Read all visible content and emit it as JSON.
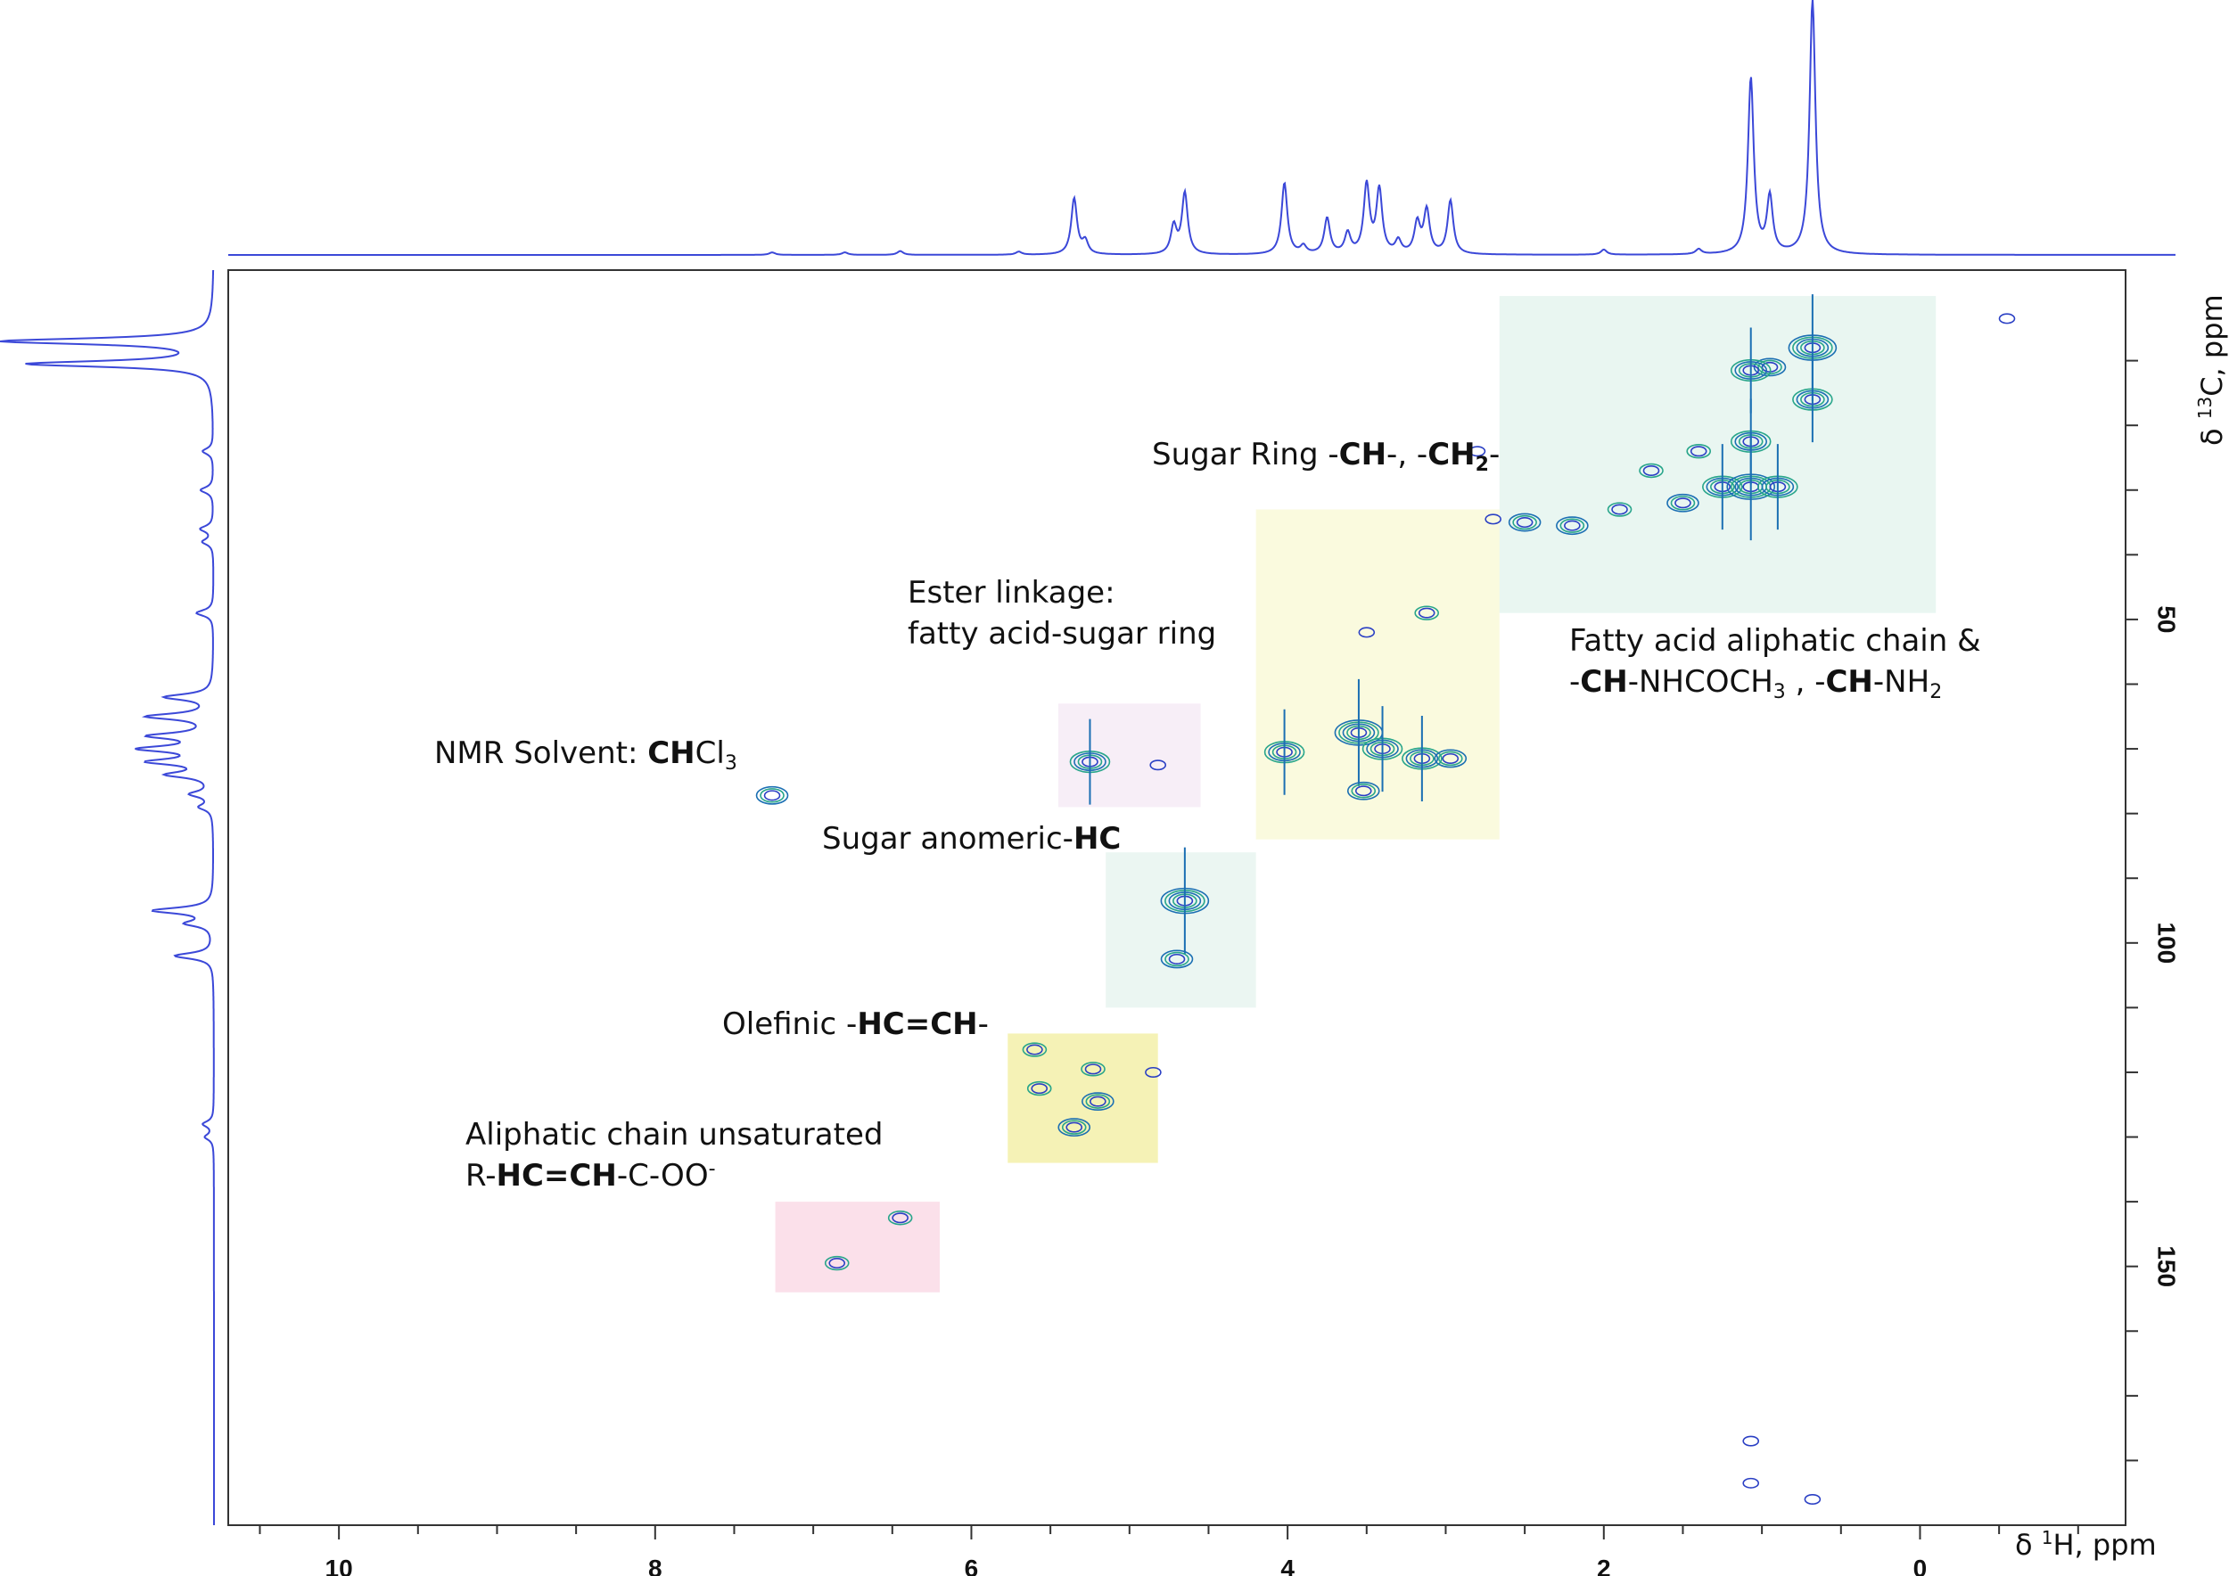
{
  "chart_data": {
    "type": "heatmap",
    "title": "",
    "x_axis": {
      "label": "δ 1H, ppm",
      "label_prefix": "δ ",
      "label_sup": "1",
      "label_suffix": "H, ppm",
      "range": [
        10.7,
        -1.3
      ],
      "direction": "reversed",
      "major_ticks": [
        10,
        8,
        6,
        4,
        2,
        0
      ],
      "tick_labels": [
        "10",
        "8",
        "6",
        "4",
        "2",
        "0"
      ]
    },
    "y_axis": {
      "label": "δ 13C, ppm",
      "label_prefix": "δ ",
      "label_sup": "13",
      "label_suffix": "C, ppm",
      "range": [
        -4,
        190
      ],
      "direction": "downward",
      "major_ticks": [
        50,
        100,
        150
      ],
      "tick_labels": [
        "50",
        "100",
        "150"
      ],
      "minor_ticks": [
        10,
        20,
        30,
        40,
        60,
        70,
        80,
        90,
        110,
        120,
        130,
        140,
        160,
        170,
        180
      ]
    },
    "projection_1H": {
      "peaks": [
        {
          "ppm": 7.26,
          "height": 0.01
        },
        {
          "ppm": 6.8,
          "height": 0.01
        },
        {
          "ppm": 6.45,
          "height": 0.015
        },
        {
          "ppm": 5.7,
          "height": 0.012
        },
        {
          "ppm": 5.35,
          "height": 0.22
        },
        {
          "ppm": 5.28,
          "height": 0.05
        },
        {
          "ppm": 4.72,
          "height": 0.11
        },
        {
          "ppm": 4.65,
          "height": 0.24
        },
        {
          "ppm": 4.02,
          "height": 0.28
        },
        {
          "ppm": 3.9,
          "height": 0.03
        },
        {
          "ppm": 3.75,
          "height": 0.14
        },
        {
          "ppm": 3.62,
          "height": 0.08
        },
        {
          "ppm": 3.5,
          "height": 0.27
        },
        {
          "ppm": 3.42,
          "height": 0.25
        },
        {
          "ppm": 3.3,
          "height": 0.05
        },
        {
          "ppm": 3.18,
          "height": 0.12
        },
        {
          "ppm": 3.12,
          "height": 0.17
        },
        {
          "ppm": 2.97,
          "height": 0.21
        },
        {
          "ppm": 2.0,
          "height": 0.02
        },
        {
          "ppm": 1.4,
          "height": 0.02
        },
        {
          "ppm": 1.07,
          "height": 0.69
        },
        {
          "ppm": 0.95,
          "height": 0.22
        },
        {
          "ppm": 0.68,
          "height": 1.0
        }
      ]
    },
    "projection_13C": {
      "peaks": [
        {
          "ppm": 7,
          "height": 0.98
        },
        {
          "ppm": 10.5,
          "height": 0.86
        },
        {
          "ppm": 24,
          "height": 0.05
        },
        {
          "ppm": 30,
          "height": 0.06
        },
        {
          "ppm": 36,
          "height": 0.06
        },
        {
          "ppm": 38,
          "height": 0.05
        },
        {
          "ppm": 49,
          "height": 0.08
        },
        {
          "ppm": 62,
          "height": 0.22
        },
        {
          "ppm": 65,
          "height": 0.3
        },
        {
          "ppm": 68,
          "height": 0.28
        },
        {
          "ppm": 70,
          "height": 0.32
        },
        {
          "ppm": 72,
          "height": 0.28
        },
        {
          "ppm": 74,
          "height": 0.2
        },
        {
          "ppm": 77,
          "height": 0.1
        },
        {
          "ppm": 79,
          "height": 0.06
        },
        {
          "ppm": 95,
          "height": 0.28
        },
        {
          "ppm": 97,
          "height": 0.12
        },
        {
          "ppm": 102,
          "height": 0.18
        },
        {
          "ppm": 128,
          "height": 0.05
        },
        {
          "ppm": 130,
          "height": 0.04
        }
      ]
    },
    "regions": [
      {
        "name": "fatty-acid-chain",
        "x_range": [
          2.66,
          -0.1
        ],
        "y_range": [
          0,
          49
        ],
        "color": "#bfe6d6",
        "opacity": 0.35
      },
      {
        "name": "sugar-ring",
        "x_range": [
          4.2,
          2.66
        ],
        "y_range": [
          33,
          84
        ],
        "color": "#f4f3b5",
        "opacity": 0.45
      },
      {
        "name": "ester-linkage",
        "x_range": [
          5.45,
          4.55
        ],
        "y_range": [
          63,
          79
        ],
        "color": "#ead4ea",
        "opacity": 0.4
      },
      {
        "name": "sugar-anomeric",
        "x_range": [
          5.15,
          4.2
        ],
        "y_range": [
          86,
          110
        ],
        "color": "#d3ebe3",
        "opacity": 0.45
      },
      {
        "name": "olefinic",
        "x_range": [
          5.77,
          4.82
        ],
        "y_range": [
          114,
          134
        ],
        "color": "#eeea86",
        "opacity": 0.6
      },
      {
        "name": "aliphatic-unsaturated",
        "x_range": [
          7.24,
          6.2
        ],
        "y_range": [
          140,
          154
        ],
        "color": "#f7c7d9",
        "opacity": 0.55
      }
    ],
    "cross_peaks": [
      {
        "x": 7.26,
        "y": 77.2,
        "intensity": 3
      },
      {
        "x": 6.45,
        "y": 142.5,
        "intensity": 2
      },
      {
        "x": 6.85,
        "y": 149.5,
        "intensity": 2
      },
      {
        "x": 5.6,
        "y": 116.5,
        "intensity": 2
      },
      {
        "x": 5.57,
        "y": 122.5,
        "intensity": 2
      },
      {
        "x": 5.23,
        "y": 119.5,
        "intensity": 2
      },
      {
        "x": 5.2,
        "y": 124.5,
        "intensity": 3
      },
      {
        "x": 5.35,
        "y": 128.5,
        "intensity": 3
      },
      {
        "x": 4.85,
        "y": 120.0,
        "intensity": 1
      },
      {
        "x": 5.25,
        "y": 72.0,
        "intensity": 4
      },
      {
        "x": 4.82,
        "y": 72.5,
        "intensity": 1
      },
      {
        "x": 4.65,
        "y": 93.5,
        "intensity": 5
      },
      {
        "x": 4.7,
        "y": 102.5,
        "intensity": 3
      },
      {
        "x": 4.02,
        "y": 70.5,
        "intensity": 4
      },
      {
        "x": 3.55,
        "y": 67.5,
        "intensity": 5
      },
      {
        "x": 3.4,
        "y": 70.0,
        "intensity": 4
      },
      {
        "x": 3.15,
        "y": 71.5,
        "intensity": 4
      },
      {
        "x": 2.97,
        "y": 71.5,
        "intensity": 3
      },
      {
        "x": 3.52,
        "y": 76.5,
        "intensity": 3
      },
      {
        "x": 3.12,
        "y": 49.0,
        "intensity": 2
      },
      {
        "x": 3.5,
        "y": 52.0,
        "intensity": 1
      },
      {
        "x": 2.7,
        "y": 34.5,
        "intensity": 1
      },
      {
        "x": 2.2,
        "y": 35.5,
        "intensity": 3
      },
      {
        "x": 2.5,
        "y": 35.0,
        "intensity": 3
      },
      {
        "x": 1.9,
        "y": 33.0,
        "intensity": 2
      },
      {
        "x": 1.5,
        "y": 32.0,
        "intensity": 3
      },
      {
        "x": 1.25,
        "y": 29.5,
        "intensity": 4
      },
      {
        "x": 1.07,
        "y": 29.5,
        "intensity": 5
      },
      {
        "x": 0.9,
        "y": 29.5,
        "intensity": 4
      },
      {
        "x": 1.07,
        "y": 22.5,
        "intensity": 4
      },
      {
        "x": 0.68,
        "y": 16.0,
        "intensity": 4
      },
      {
        "x": 0.68,
        "y": 8.0,
        "intensity": 5
      },
      {
        "x": 0.95,
        "y": 11.0,
        "intensity": 3
      },
      {
        "x": 1.07,
        "y": 11.5,
        "intensity": 4
      },
      {
        "x": 1.4,
        "y": 24.0,
        "intensity": 2
      },
      {
        "x": 1.7,
        "y": 27.0,
        "intensity": 2
      },
      {
        "x": 2.8,
        "y": 24.0,
        "intensity": 1
      },
      {
        "x": -0.55,
        "y": 3.5,
        "intensity": 1
      },
      {
        "x": 1.07,
        "y": 177.0,
        "intensity": 1
      },
      {
        "x": 0.68,
        "y": 186.0,
        "intensity": 1
      },
      {
        "x": 1.07,
        "y": 183.5,
        "intensity": 1
      }
    ],
    "annotations": [
      {
        "text": "NMR Solvent: CHCl3"
      },
      {
        "text": "Ester linkage: fatty acid-sugar ring"
      },
      {
        "text": "Sugar Ring -CH-, -CH2-"
      },
      {
        "text": "Sugar anomeric-HC"
      },
      {
        "text": "Olefinic -HC=CH-"
      },
      {
        "text": "Aliphatic chain unsaturated R-HC=CH-C-OO-"
      },
      {
        "text": "Fatty acid aliphatic chain & -CH-NHCOCH3 , -CH-NH2"
      }
    ],
    "colors": {
      "spectrum": "#3b48d8",
      "contour_strong": "#2a3fc4",
      "contour_mid": "#1b6fb3",
      "contour_weak": "#27a58a"
    }
  },
  "labels": {
    "solvent_prefix": "NMR Solvent: ",
    "solvent_bold": "CH",
    "solvent_rest": "Cl",
    "solvent_sub": "3",
    "ester_line1": "Ester linkage:",
    "ester_line2": "fatty acid-sugar ring",
    "sugar_ring_prefix": "Sugar Ring -",
    "sugar_ring_b1": "CH",
    "sugar_ring_mid": "-, -",
    "sugar_ring_b2": "CH",
    "sugar_ring_sub": "2",
    "sugar_ring_end": "-",
    "anomeric_prefix": "Sugar anomeric-",
    "anomeric_bold": "HC",
    "olefinic_prefix": "Olefinic -",
    "olefinic_bold": "HC=CH",
    "olefinic_end": "-",
    "aliph_line1": "Aliphatic chain unsaturated",
    "aliph_prefix": "R-",
    "aliph_bold": "HC=CH",
    "aliph_rest": "-C-OO",
    "aliph_sup": "-",
    "fatty_line1": "Fatty acid aliphatic chain &",
    "fatty_dash": "-",
    "fatty_b1": "CH",
    "fatty_mid": "-NHCOCH",
    "fatty_sub1": "3",
    "fatty_mid2": " , -",
    "fatty_b2": "CH",
    "fatty_mid3": "-NH",
    "fatty_sub2": "2"
  }
}
